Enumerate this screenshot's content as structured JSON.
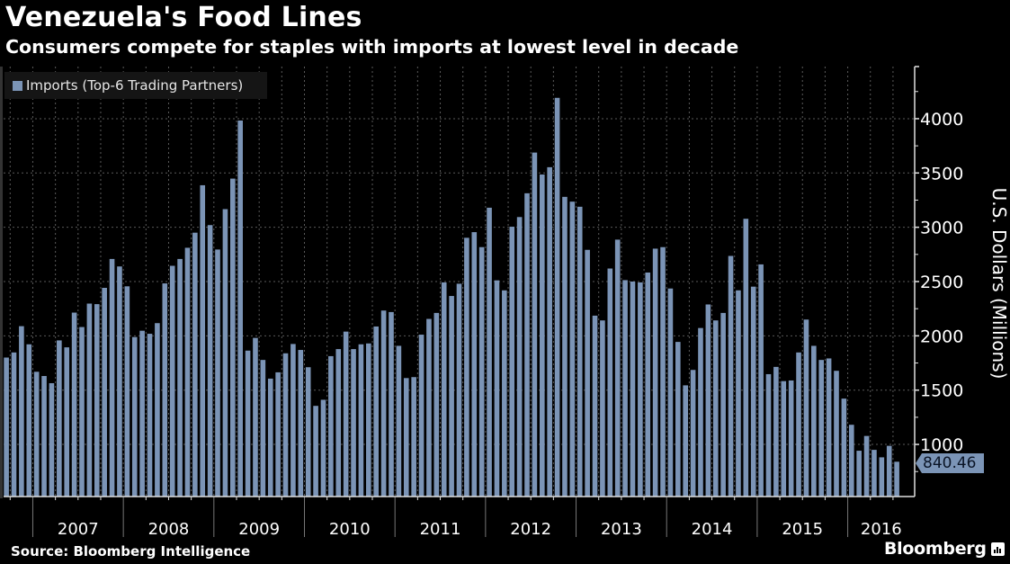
{
  "header": {
    "title": "Venezuela's Food Lines",
    "subtitle": "Consumers compete for staples with imports at lowest level in decade"
  },
  "footer": {
    "source": "Source: Bloomberg Intelligence",
    "brand": "Bloomberg",
    "brand_icon": "bloomberg-chart-icon"
  },
  "colors": {
    "bar": "#7b94b6",
    "background": "#000000",
    "grid": "#5a5a5a",
    "axis": "#e0e0e0"
  },
  "chart_data": {
    "type": "bar",
    "title": "Venezuela's Food Lines",
    "subtitle": "Consumers compete for staples with imports at lowest level in decade",
    "xlabel": "",
    "ylabel": "U.S. Dollars (Millions)",
    "y_axis_side": "right",
    "ylim": [
      520,
      4480
    ],
    "yticks": [
      1000,
      1500,
      2000,
      2500,
      3000,
      3500,
      4000
    ],
    "ytick_labels": [
      "1000",
      "1500",
      "2000",
      "2500",
      "3000",
      "3500",
      "4000"
    ],
    "grid": true,
    "legend": {
      "position": "top-left",
      "entries": [
        "Imports (Top-6 Trading Partners)"
      ]
    },
    "start_period": "2006-09",
    "frequency": "monthly",
    "x_year_labels": [
      "2007",
      "2008",
      "2009",
      "2010",
      "2011",
      "2012",
      "2013",
      "2014",
      "2015",
      "2016"
    ],
    "last_value_label": "840.46",
    "series": [
      {
        "name": "Imports (Top-6 Trading Partners)",
        "values": [
          1800,
          1847,
          2089,
          1922,
          1669,
          1630,
          1564,
          1958,
          1894,
          2214,
          2081,
          2297,
          2292,
          2442,
          2708,
          2639,
          2456,
          1989,
          2047,
          2019,
          2117,
          2483,
          2645,
          2708,
          2811,
          2950,
          3387,
          3020,
          2795,
          3167,
          3448,
          3983,
          1864,
          1981,
          1778,
          1606,
          1664,
          1839,
          1925,
          1870,
          1711,
          1355,
          1411,
          1813,
          1878,
          2039,
          1878,
          1922,
          1930,
          2086,
          2233,
          2219,
          1908,
          1611,
          1620,
          2011,
          2156,
          2211,
          2492,
          2367,
          2480,
          2903,
          2955,
          2817,
          3180,
          2511,
          2419,
          3005,
          3094,
          3313,
          3688,
          3486,
          3553,
          4192,
          3280,
          3236,
          3189,
          2792,
          2186,
          2142,
          2620,
          2886,
          2513,
          2500,
          2492,
          2583,
          2803,
          2817,
          2436,
          1944,
          1544,
          1686,
          2072,
          2289,
          2142,
          2211,
          2736,
          2419,
          3078,
          2453,
          2658,
          1647,
          1714,
          1583,
          1589,
          1847,
          2150,
          1908,
          1778,
          1792,
          1678,
          1422,
          1181,
          942,
          1078,
          950,
          881,
          987,
          840.46
        ]
      }
    ]
  }
}
